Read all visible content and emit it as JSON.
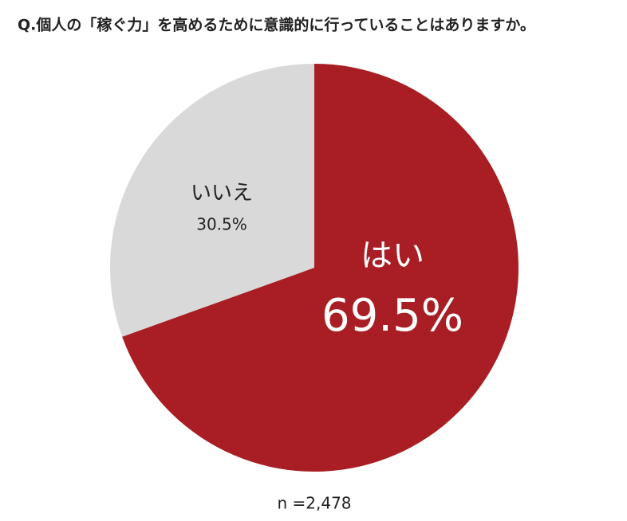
{
  "chart_data": {
    "type": "pie",
    "title": "Q.個人の「稼ぐ力」を高めるために意識的に行っていることはありますか。",
    "categories": [
      "はい",
      "いいえ"
    ],
    "values": [
      69.5,
      30.5
    ],
    "value_labels": [
      "69.5%",
      "30.5%"
    ],
    "colors": [
      "#a81e24",
      "#d9d9d9"
    ],
    "note": "n =2,478"
  }
}
